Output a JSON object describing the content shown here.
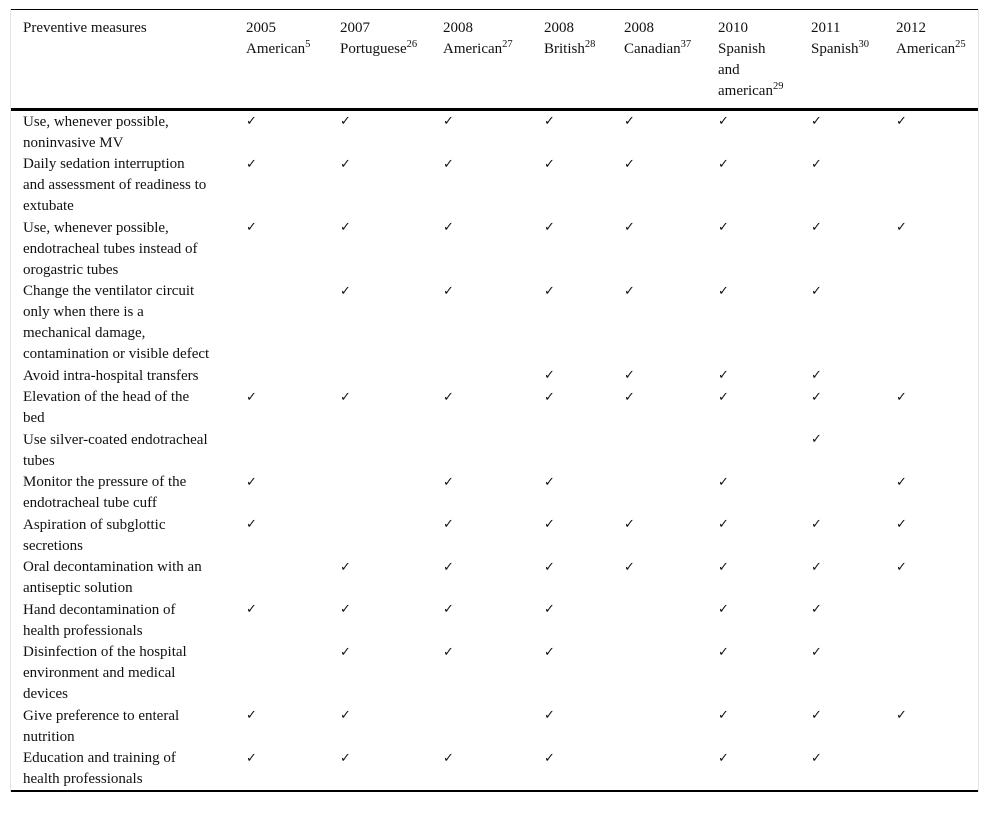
{
  "table": {
    "row_header_label": "Preventive measures",
    "check_glyph": "✓",
    "columns": [
      {
        "year": "2005",
        "name_lines": [
          "American"
        ],
        "ref": "5"
      },
      {
        "year": "2007",
        "name_lines": [
          "Portuguese"
        ],
        "ref": "26"
      },
      {
        "year": "2008",
        "name_lines": [
          "American"
        ],
        "ref": "27"
      },
      {
        "year": "2008",
        "name_lines": [
          "British"
        ],
        "ref": "28"
      },
      {
        "year": "2008",
        "name_lines": [
          "Canadian"
        ],
        "ref": "37"
      },
      {
        "year": "2010",
        "name_lines": [
          "Spanish",
          "and",
          "american"
        ],
        "ref": "29"
      },
      {
        "year": "2011",
        "name_lines": [
          "Spanish"
        ],
        "ref": "30"
      },
      {
        "year": "2012",
        "name_lines": [
          "American"
        ],
        "ref": "25"
      }
    ],
    "rows": [
      {
        "measure": "Use, whenever possible, noninvasive MV",
        "checks": [
          true,
          true,
          true,
          true,
          true,
          true,
          true,
          true
        ]
      },
      {
        "measure": "Daily sedation interruption and assessment of readiness to extubate",
        "checks": [
          true,
          true,
          true,
          true,
          true,
          true,
          true,
          false
        ]
      },
      {
        "measure": "Use, whenever possible, endotracheal tubes instead of orogastric tubes",
        "checks": [
          true,
          true,
          true,
          true,
          true,
          true,
          true,
          true
        ]
      },
      {
        "measure": "Change the ventilator circuit only when there is a mechanical damage, contamination or visible defect",
        "checks": [
          false,
          true,
          true,
          true,
          true,
          true,
          true,
          false
        ]
      },
      {
        "measure": "Avoid intra-hospital transfers",
        "checks": [
          false,
          false,
          false,
          true,
          true,
          true,
          true,
          false
        ]
      },
      {
        "measure": "Elevation of the head of the bed",
        "checks": [
          true,
          true,
          true,
          true,
          true,
          true,
          true,
          true
        ]
      },
      {
        "measure": "Use silver-coated endotracheal tubes",
        "checks": [
          false,
          false,
          false,
          false,
          false,
          false,
          true,
          false
        ]
      },
      {
        "measure": "Monitor the pressure of the endotracheal tube cuff",
        "checks": [
          true,
          false,
          true,
          true,
          false,
          true,
          false,
          true
        ]
      },
      {
        "measure": "Aspiration of subglottic secretions",
        "checks": [
          true,
          false,
          true,
          true,
          true,
          true,
          true,
          true
        ]
      },
      {
        "measure": "Oral decontamination with an antiseptic solution",
        "checks": [
          false,
          true,
          true,
          true,
          true,
          true,
          true,
          true
        ]
      },
      {
        "measure": "Hand decontamination of health professionals",
        "checks": [
          true,
          true,
          true,
          true,
          false,
          true,
          true,
          false
        ]
      },
      {
        "measure": "Disinfection of the hospital environment and medical devices",
        "checks": [
          false,
          true,
          true,
          true,
          false,
          true,
          true,
          false
        ]
      },
      {
        "measure": "Give preference to enteral nutrition",
        "checks": [
          true,
          true,
          false,
          true,
          false,
          true,
          true,
          true
        ]
      },
      {
        "measure": "Education and training of health professionals",
        "checks": [
          true,
          true,
          true,
          true,
          false,
          true,
          true,
          false
        ]
      }
    ]
  }
}
